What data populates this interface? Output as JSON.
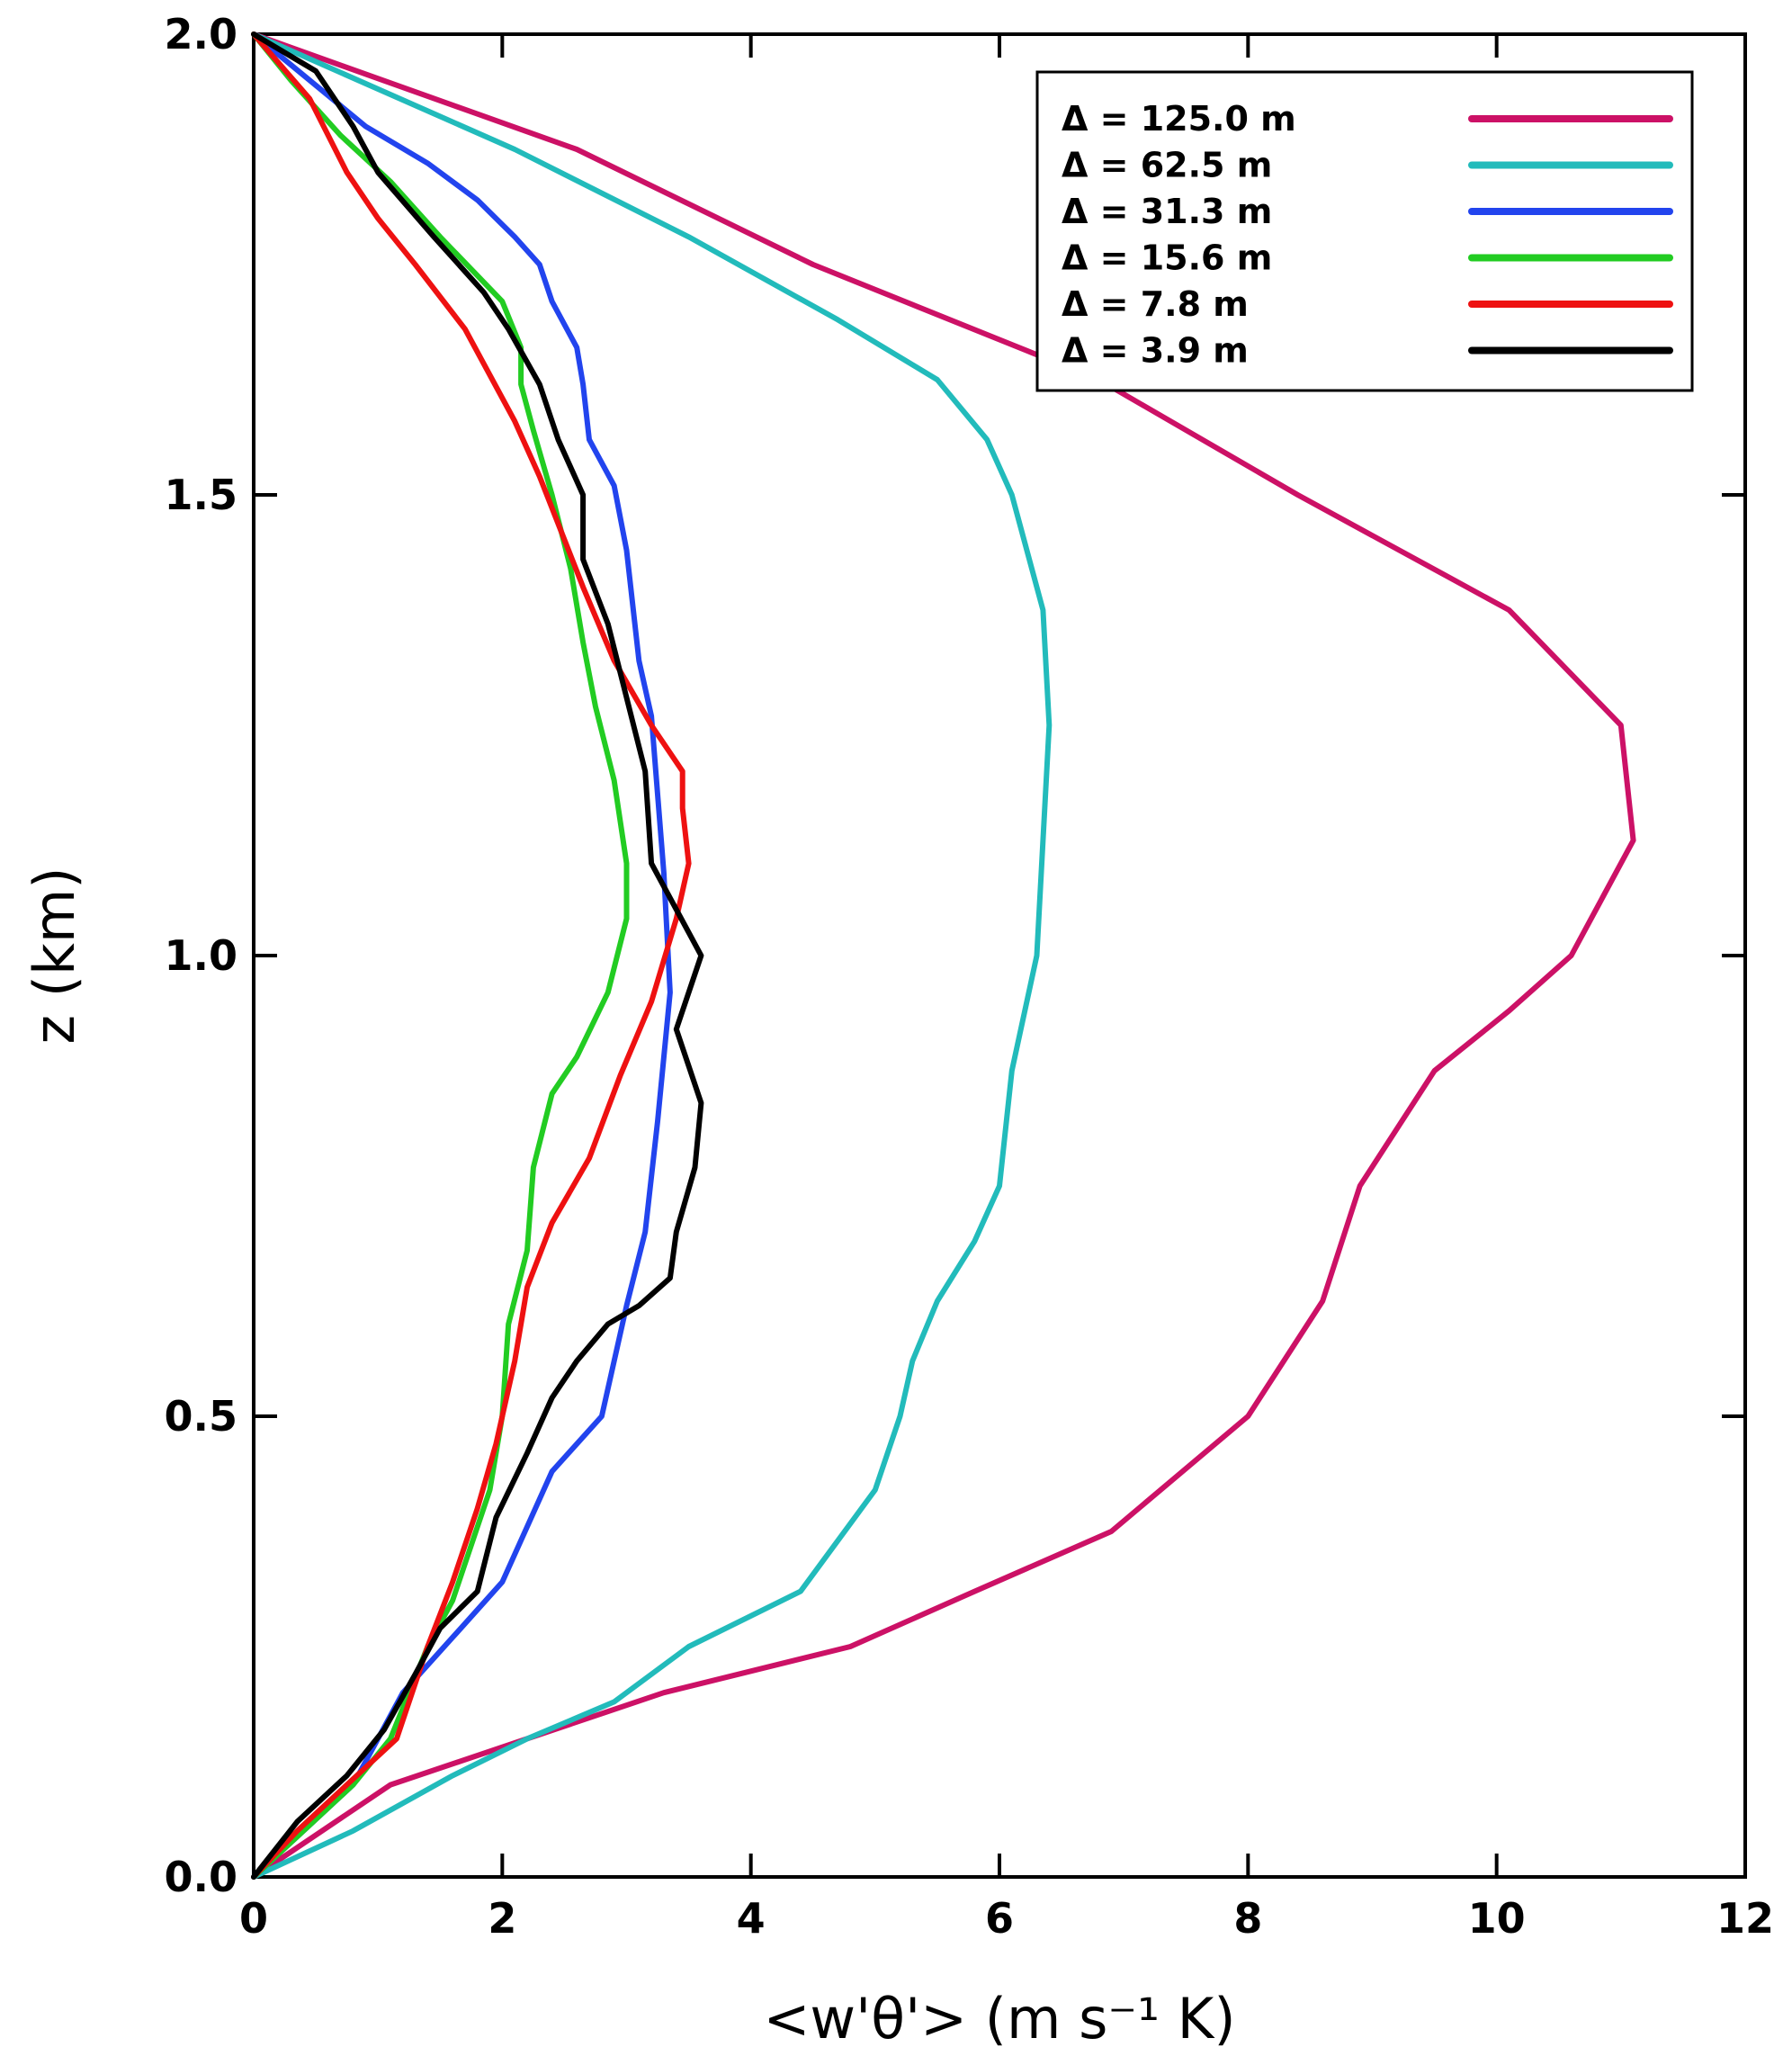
{
  "chart_data": {
    "type": "line",
    "title": "",
    "xlabel": "<w'θ'>  (m  s⁻¹  K)",
    "ylabel": "z  (km)",
    "xlim": [
      0,
      12
    ],
    "ylim": [
      0,
      2.0
    ],
    "xticks": [
      "0",
      "2",
      "4",
      "6",
      "8",
      "10",
      "12"
    ],
    "yticks": [
      "0.0",
      "0.5",
      "1.0",
      "1.5",
      "2.0"
    ],
    "legend_position": "top-right",
    "series": [
      {
        "name": "Δ  =  125.0  m",
        "color": "#cc1166",
        "x": [
          0,
          1.1,
          2.2,
          3.3,
          4.8,
          5.8,
          6.9,
          8.0,
          8.6,
          8.9,
          9.5,
          10.1,
          10.6,
          11.1,
          11.0,
          10.1,
          8.4,
          6.8,
          4.5,
          2.6,
          0
        ],
        "y": [
          0,
          0.1,
          0.15,
          0.2,
          0.25,
          0.31,
          0.375,
          0.5,
          0.625,
          0.75,
          0.875,
          0.94,
          1.0,
          1.125,
          1.25,
          1.375,
          1.5,
          1.625,
          1.75,
          1.875,
          2.0
        ]
      },
      {
        "name": "Δ  =  62.5  m",
        "color": "#22bbbb",
        "x": [
          0,
          0.8,
          1.6,
          2.2,
          2.9,
          3.5,
          4.4,
          5.0,
          5.2,
          5.3,
          5.5,
          5.8,
          6.0,
          6.1,
          6.3,
          6.35,
          6.4,
          6.35,
          6.1,
          5.9,
          5.5,
          4.7,
          3.5,
          2.1,
          0
        ],
        "y": [
          0,
          0.05,
          0.11,
          0.15,
          0.19,
          0.25,
          0.31,
          0.42,
          0.5,
          0.56,
          0.625,
          0.69,
          0.75,
          0.875,
          1.0,
          1.125,
          1.25,
          1.375,
          1.5,
          1.56,
          1.625,
          1.69,
          1.78,
          1.875,
          2.0
        ]
      },
      {
        "name": "Δ  =  31.3  m",
        "color": "#2244ee",
        "x": [
          0,
          0.4,
          0.8,
          1.2,
          1.6,
          2.0,
          2.4,
          2.8,
          3.0,
          3.15,
          3.25,
          3.35,
          3.3,
          3.2,
          3.1,
          3.0,
          2.9,
          2.7,
          2.65,
          2.6,
          2.4,
          2.3,
          2.1,
          1.8,
          1.4,
          0.9,
          0
        ],
        "y": [
          0,
          0.05,
          0.1,
          0.2,
          0.26,
          0.32,
          0.44,
          0.5,
          0.62,
          0.7,
          0.82,
          0.96,
          1.09,
          1.26,
          1.32,
          1.44,
          1.51,
          1.56,
          1.62,
          1.66,
          1.71,
          1.75,
          1.78,
          1.82,
          1.86,
          1.9,
          2.0
        ]
      },
      {
        "name": "Δ  =  15.6  m",
        "color": "#22cc22",
        "x": [
          0,
          0.4,
          0.8,
          1.1,
          1.4,
          1.6,
          1.9,
          2.0,
          2.05,
          2.2,
          2.25,
          2.4,
          2.6,
          2.85,
          3.0,
          3.0,
          2.9,
          2.75,
          2.65,
          2.55,
          2.4,
          2.25,
          2.15,
          2.15,
          2.0,
          1.5,
          1.1,
          0.7,
          0.3,
          0
        ],
        "y": [
          0,
          0.05,
          0.1,
          0.15,
          0.25,
          0.3,
          0.42,
          0.5,
          0.6,
          0.68,
          0.77,
          0.85,
          0.89,
          0.96,
          1.04,
          1.1,
          1.19,
          1.27,
          1.34,
          1.42,
          1.5,
          1.57,
          1.62,
          1.66,
          1.71,
          1.78,
          1.84,
          1.89,
          1.95,
          2.0
        ]
      },
      {
        "name": "Δ  =  7.8  m",
        "color": "#ee1111",
        "x": [
          0,
          0.35,
          0.75,
          1.15,
          1.4,
          1.6,
          1.8,
          1.95,
          2.1,
          2.2,
          2.4,
          2.7,
          2.95,
          3.2,
          3.4,
          3.5,
          3.45,
          3.45,
          3.2,
          2.9,
          2.65,
          2.3,
          2.1,
          1.7,
          1.3,
          1.0,
          0.75,
          0.45,
          0
        ],
        "y": [
          0,
          0.05,
          0.1,
          0.15,
          0.25,
          0.32,
          0.4,
          0.47,
          0.56,
          0.64,
          0.71,
          0.78,
          0.87,
          0.95,
          1.04,
          1.1,
          1.16,
          1.2,
          1.25,
          1.32,
          1.4,
          1.52,
          1.58,
          1.68,
          1.75,
          1.8,
          1.85,
          1.93,
          2.0
        ]
      },
      {
        "name": "Δ  =  3.9  m",
        "color": "#000000",
        "x": [
          0,
          0.35,
          0.75,
          1.05,
          1.3,
          1.5,
          1.8,
          1.95,
          2.2,
          2.4,
          2.6,
          2.85,
          3.1,
          3.35,
          3.4,
          3.55,
          3.6,
          3.4,
          3.6,
          3.4,
          3.2,
          3.15,
          3.0,
          2.85,
          2.65,
          2.65,
          2.45,
          2.3,
          2.05,
          1.85,
          1.45,
          1.0,
          0.8,
          0.5,
          0
        ],
        "y": [
          0,
          0.06,
          0.11,
          0.16,
          0.22,
          0.27,
          0.31,
          0.39,
          0.46,
          0.52,
          0.56,
          0.6,
          0.62,
          0.65,
          0.7,
          0.77,
          0.84,
          0.92,
          1.0,
          1.05,
          1.1,
          1.2,
          1.28,
          1.36,
          1.43,
          1.5,
          1.56,
          1.62,
          1.68,
          1.72,
          1.78,
          1.85,
          1.9,
          1.96,
          2.0
        ]
      }
    ]
  }
}
